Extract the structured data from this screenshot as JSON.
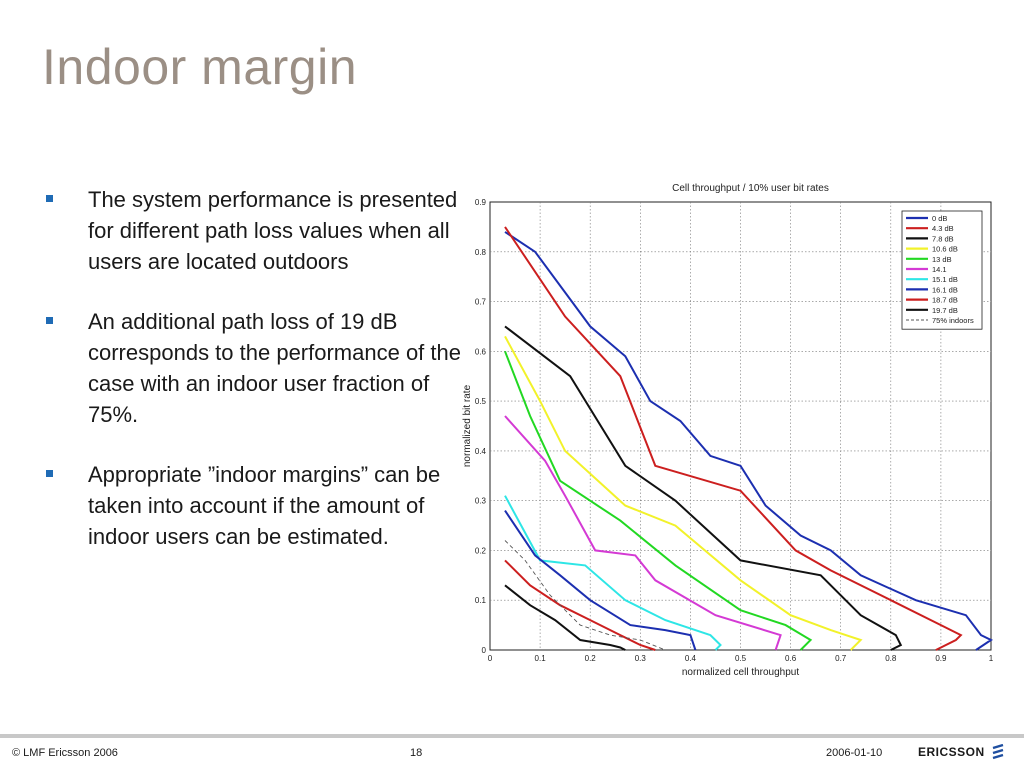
{
  "slide": {
    "title": "Indoor margin",
    "bullets": [
      "The system performance is presented for different path loss values when all users are located outdoors",
      "An additional path loss of 19 dB corresponds to the performance of the case with an indoor user fraction of 75%.",
      "Appropriate ”indoor margins” can be taken into account if the amount of indoor users can be estimated."
    ],
    "footer": {
      "copyright": "© LMF Ericsson 2006",
      "page": "18",
      "date": "2006-01-10",
      "logo_text": "ERICSSON"
    }
  },
  "chart_data": {
    "type": "line",
    "title": "Cell throughput / 10% user bit rates",
    "xlabel": "normalized cell throughput",
    "ylabel": "normalized bit rate",
    "xlim": [
      0,
      1
    ],
    "ylim": [
      0,
      0.9
    ],
    "xticks": [
      0,
      0.1,
      0.2,
      0.3,
      0.4,
      0.5,
      0.6,
      0.7,
      0.8,
      0.9,
      1
    ],
    "yticks": [
      0,
      0.1,
      0.2,
      0.3,
      0.4,
      0.5,
      0.6,
      0.7,
      0.8,
      0.9
    ],
    "xtick_labels": [
      "0",
      "0.1",
      "0.2",
      "0.3",
      "0.4",
      "0.5",
      "0.6",
      "0.7",
      "0.8",
      "0.9",
      "1"
    ],
    "ytick_labels": [
      "0",
      "0.1",
      "0.2",
      "0.3",
      "0.4",
      "0.5",
      "0.6",
      "0.7",
      "0.8",
      "0.9"
    ],
    "grid": true,
    "legend_position": "top-right",
    "series": [
      {
        "name": "0 dB",
        "color": "#1c2fb0",
        "dash": false,
        "x": [
          0.03,
          0.09,
          0.2,
          0.27,
          0.32,
          0.38,
          0.44,
          0.5,
          0.55,
          0.62,
          0.68,
          0.74,
          0.85,
          0.95,
          0.98,
          1.0,
          0.97
        ],
        "y": [
          0.84,
          0.8,
          0.65,
          0.59,
          0.5,
          0.46,
          0.39,
          0.37,
          0.29,
          0.23,
          0.2,
          0.15,
          0.1,
          0.07,
          0.03,
          0.02,
          0.0
        ]
      },
      {
        "name": "4.3 dB",
        "color": "#cc1f1f",
        "dash": false,
        "x": [
          0.03,
          0.15,
          0.26,
          0.33,
          0.5,
          0.61,
          0.68,
          0.8,
          0.9,
          0.94,
          0.93,
          0.89
        ],
        "y": [
          0.85,
          0.67,
          0.55,
          0.37,
          0.32,
          0.2,
          0.16,
          0.1,
          0.05,
          0.03,
          0.02,
          0.0
        ]
      },
      {
        "name": "7.8 dB",
        "color": "#111111",
        "dash": false,
        "x": [
          0.03,
          0.16,
          0.27,
          0.37,
          0.5,
          0.66,
          0.74,
          0.81,
          0.82,
          0.8
        ],
        "y": [
          0.65,
          0.55,
          0.37,
          0.3,
          0.18,
          0.15,
          0.07,
          0.03,
          0.01,
          0.0
        ]
      },
      {
        "name": "10.6 dB",
        "color": "#f2f22a",
        "dash": false,
        "x": [
          0.03,
          0.1,
          0.15,
          0.27,
          0.37,
          0.5,
          0.6,
          0.68,
          0.74,
          0.72
        ],
        "y": [
          0.63,
          0.5,
          0.4,
          0.29,
          0.25,
          0.14,
          0.07,
          0.04,
          0.02,
          0.0
        ]
      },
      {
        "name": "13 dB",
        "color": "#22d822",
        "dash": false,
        "x": [
          0.03,
          0.08,
          0.14,
          0.26,
          0.37,
          0.5,
          0.59,
          0.64,
          0.62
        ],
        "y": [
          0.6,
          0.47,
          0.34,
          0.26,
          0.17,
          0.08,
          0.05,
          0.02,
          0.0
        ]
      },
      {
        "name": "14.1",
        "color": "#d43ad4",
        "dash": false,
        "x": [
          0.03,
          0.11,
          0.15,
          0.21,
          0.29,
          0.33,
          0.45,
          0.58,
          0.57
        ],
        "y": [
          0.47,
          0.38,
          0.31,
          0.2,
          0.19,
          0.14,
          0.07,
          0.03,
          0.0
        ]
      },
      {
        "name": "15.1 dB",
        "color": "#2ee6e6",
        "dash": false,
        "x": [
          0.03,
          0.1,
          0.19,
          0.27,
          0.35,
          0.44,
          0.46,
          0.45
        ],
        "y": [
          0.31,
          0.18,
          0.17,
          0.1,
          0.06,
          0.03,
          0.01,
          0.0
        ]
      },
      {
        "name": "16.1 dB",
        "color": "#1c2fb0",
        "dash": false,
        "x": [
          0.03,
          0.09,
          0.14,
          0.2,
          0.28,
          0.35,
          0.4,
          0.41
        ],
        "y": [
          0.28,
          0.19,
          0.15,
          0.1,
          0.05,
          0.04,
          0.03,
          0.0
        ]
      },
      {
        "name": "18.7 dB",
        "color": "#cc1f1f",
        "dash": false,
        "x": [
          0.03,
          0.08,
          0.14,
          0.2,
          0.26,
          0.3,
          0.33
        ],
        "y": [
          0.18,
          0.13,
          0.09,
          0.06,
          0.03,
          0.01,
          0.0
        ]
      },
      {
        "name": "19.7 dB",
        "color": "#111111",
        "dash": false,
        "x": [
          0.03,
          0.08,
          0.13,
          0.18,
          0.24,
          0.26,
          0.27
        ],
        "y": [
          0.13,
          0.09,
          0.06,
          0.02,
          0.01,
          0.005,
          0.0
        ]
      },
      {
        "name": "75% indoors",
        "color": "#555555",
        "dash": true,
        "x": [
          0.03,
          0.07,
          0.12,
          0.18,
          0.24,
          0.3,
          0.35
        ],
        "y": [
          0.22,
          0.18,
          0.11,
          0.05,
          0.03,
          0.02,
          0.0
        ]
      }
    ]
  }
}
